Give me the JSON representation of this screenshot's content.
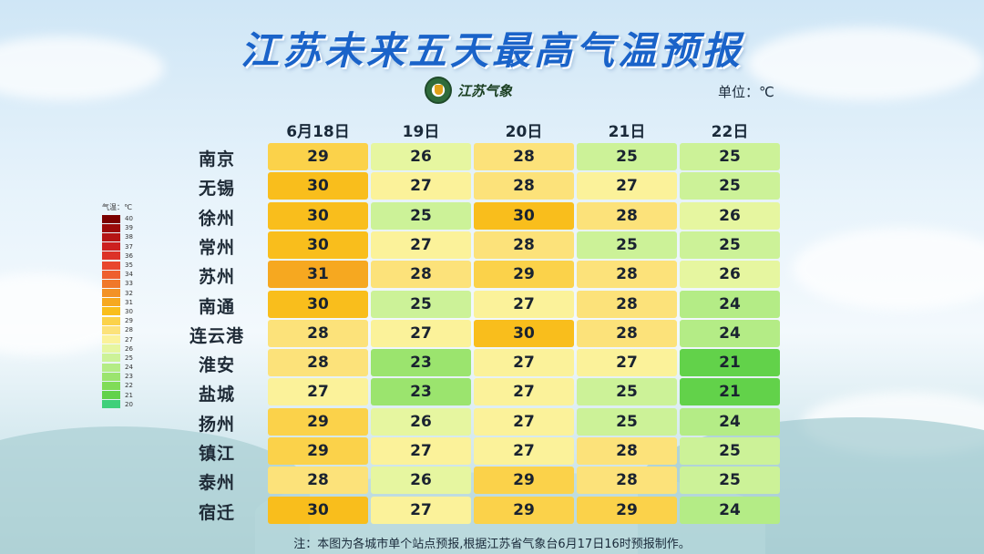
{
  "title": "江苏未来五天最高气温预报",
  "logo_text": "江苏气象",
  "unit_label": "单位：℃",
  "legend": {
    "title": "气温：℃",
    "entries": [
      {
        "value": "40",
        "color": "#7a0000"
      },
      {
        "value": "39",
        "color": "#9b0a0a"
      },
      {
        "value": "38",
        "color": "#b51515"
      },
      {
        "value": "37",
        "color": "#cc2020"
      },
      {
        "value": "36",
        "color": "#dc3228"
      },
      {
        "value": "35",
        "color": "#e8462e"
      },
      {
        "value": "34",
        "color": "#ee5f2e"
      },
      {
        "value": "33",
        "color": "#f0782a"
      },
      {
        "value": "32",
        "color": "#f39226"
      },
      {
        "value": "31",
        "color": "#f6a820"
      },
      {
        "value": "30",
        "color": "#f9be1c"
      },
      {
        "value": "29",
        "color": "#fbd24a"
      },
      {
        "value": "28",
        "color": "#fce27a"
      },
      {
        "value": "27",
        "color": "#fbf29a"
      },
      {
        "value": "26",
        "color": "#e6f6a0"
      },
      {
        "value": "25",
        "color": "#ccf298"
      },
      {
        "value": "24",
        "color": "#b4ec86"
      },
      {
        "value": "23",
        "color": "#9be46e"
      },
      {
        "value": "22",
        "color": "#80dc58"
      },
      {
        "value": "21",
        "color": "#62d24a"
      },
      {
        "value": "20",
        "color": "#3fd07a"
      }
    ]
  },
  "columns": [
    "6月18日",
    "19日",
    "20日",
    "21日",
    "22日"
  ],
  "rows": [
    {
      "city": "南京",
      "temps": [
        "29",
        "26",
        "28",
        "25",
        "25"
      ]
    },
    {
      "city": "无锡",
      "temps": [
        "30",
        "27",
        "28",
        "27",
        "25"
      ]
    },
    {
      "city": "徐州",
      "temps": [
        "30",
        "25",
        "30",
        "28",
        "26"
      ]
    },
    {
      "city": "常州",
      "temps": [
        "30",
        "27",
        "28",
        "25",
        "25"
      ]
    },
    {
      "city": "苏州",
      "temps": [
        "31",
        "28",
        "29",
        "28",
        "26"
      ]
    },
    {
      "city": "南通",
      "temps": [
        "30",
        "25",
        "27",
        "28",
        "24"
      ]
    },
    {
      "city": "连云港",
      "temps": [
        "28",
        "27",
        "30",
        "28",
        "24"
      ]
    },
    {
      "city": "淮安",
      "temps": [
        "28",
        "23",
        "27",
        "27",
        "21"
      ]
    },
    {
      "city": "盐城",
      "temps": [
        "27",
        "23",
        "27",
        "25",
        "21"
      ]
    },
    {
      "city": "扬州",
      "temps": [
        "29",
        "26",
        "27",
        "25",
        "24"
      ]
    },
    {
      "city": "镇江",
      "temps": [
        "29",
        "27",
        "27",
        "28",
        "25"
      ]
    },
    {
      "city": "泰州",
      "temps": [
        "28",
        "26",
        "29",
        "28",
        "25"
      ]
    },
    {
      "city": "宿迁",
      "temps": [
        "30",
        "27",
        "29",
        "29",
        "24"
      ]
    }
  ],
  "note": "注：本图为各城市单个站点预报,根据江苏省气象台6月17日16时预报制作。"
}
